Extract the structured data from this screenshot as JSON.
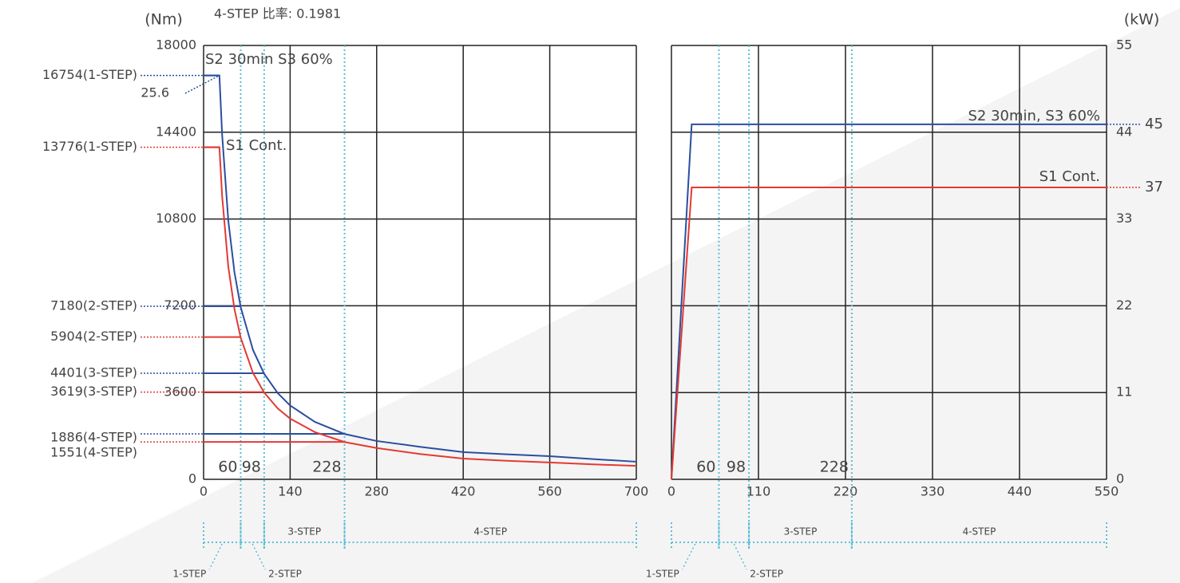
{
  "chart_data": [
    {
      "type": "line",
      "title": "4-STEP 比率: 0.1981",
      "y_label": "(Nm)",
      "x": [
        0,
        25.6,
        30,
        40,
        50,
        60,
        80,
        98,
        120,
        140,
        180,
        228,
        280,
        350,
        420,
        490,
        560,
        630,
        700
      ],
      "xlim": [
        0,
        700
      ],
      "xticks": [
        0,
        140,
        280,
        420,
        560,
        700
      ],
      "ylim": [
        0,
        18000
      ],
      "yticks": [
        0,
        3600,
        7200,
        10800,
        14400,
        18000
      ],
      "grid": true,
      "series": [
        {
          "name": "S2 30min  S3 60%",
          "color": "#2b4f9f",
          "values": [
            16754,
            16754,
            14297,
            10723,
            8578,
            7148,
            5361,
            4377,
            3574,
            3064,
            2383,
            1881,
            1590,
            1350,
            1130,
            1040,
            960,
            840,
            730
          ]
        },
        {
          "name": "S1 Cont.",
          "color": "#e33a32",
          "values": [
            13776,
            13776,
            11756,
            8817,
            7053,
            5878,
            4408,
            3599,
            2939,
            2519,
            1959,
            1547,
            1300,
            1050,
            860,
            770,
            700,
            620,
            560
          ]
        }
      ],
      "corner_speed": 25.6,
      "step_levels": [
        {
          "label": "16754(1-STEP)",
          "value": 16754,
          "series": 0,
          "x_end": 25.6
        },
        {
          "label": "13776(1-STEP)",
          "value": 13776,
          "series": 1,
          "x_end": 25.6
        },
        {
          "label": "7180(2-STEP)",
          "value": 7180,
          "series": 0,
          "x_end": 60
        },
        {
          "label": "5904(2-STEP)",
          "value": 5904,
          "series": 1,
          "x_end": 60
        },
        {
          "label": "4401(3-STEP)",
          "value": 4401,
          "series": 0,
          "x_end": 98
        },
        {
          "label": "3619(3-STEP)",
          "value": 3619,
          "series": 1,
          "x_end": 98
        },
        {
          "label": "1886(4-STEP)",
          "value": 1886,
          "series": 0,
          "x_end": 228
        },
        {
          "label": "1551(4-STEP)",
          "value": 1551,
          "series": 1,
          "x_end": 228
        }
      ],
      "speed_markers": [
        60,
        98,
        228
      ],
      "gear_ranges": [
        {
          "name": "1-STEP",
          "range": [
            0,
            60
          ]
        },
        {
          "name": "2-STEP",
          "range": [
            60,
            98
          ]
        },
        {
          "name": "3-STEP",
          "range": [
            98,
            228
          ]
        },
        {
          "name": "4-STEP",
          "range": [
            228,
            700
          ]
        }
      ]
    },
    {
      "type": "line",
      "y_label": "(kW)",
      "x": [
        0,
        25.6,
        550
      ],
      "xlim": [
        0,
        550
      ],
      "xticks": [
        0,
        110,
        220,
        330,
        440,
        550
      ],
      "ylim": [
        0,
        55
      ],
      "yticks": [
        0,
        11,
        22,
        33,
        44,
        55
      ],
      "grid": true,
      "series": [
        {
          "name": "S2 30min, S3 60%",
          "color": "#2b4f9f",
          "values": [
            0,
            45,
            45
          ]
        },
        {
          "name": "S1 Cont.",
          "color": "#e33a32",
          "values": [
            0,
            37,
            37
          ]
        }
      ],
      "level_labels": [
        45,
        37
      ],
      "speed_markers": [
        60,
        98,
        228
      ],
      "gear_ranges": [
        {
          "name": "1-STEP",
          "range": [
            0,
            60
          ]
        },
        {
          "name": "2-STEP",
          "range": [
            60,
            98
          ]
        },
        {
          "name": "3-STEP",
          "range": [
            98,
            228
          ]
        },
        {
          "name": "4-STEP",
          "range": [
            228,
            550
          ]
        }
      ]
    }
  ]
}
